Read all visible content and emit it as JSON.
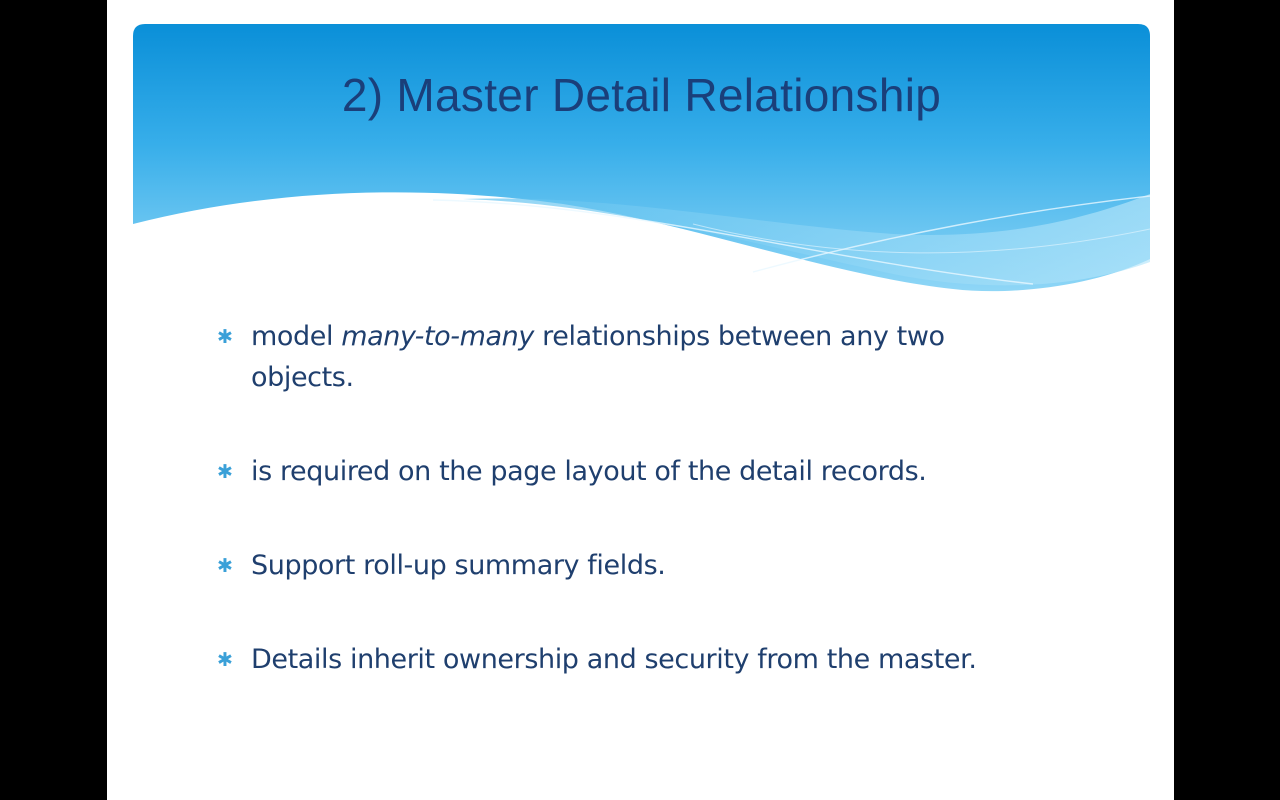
{
  "slide": {
    "title": "2) Master Detail Relationship",
    "bullet_icon": "asterisk-icon",
    "colors": {
      "banner_top": "#0a8fd8",
      "banner_bottom": "#7fd0f5",
      "title": "#1a3f7a",
      "text": "#1f3f6e",
      "bullet": "#3aa0d8"
    },
    "bullets": [
      {
        "pre": "model ",
        "em": "many-to-many",
        "post": " relationships between any two objects."
      },
      {
        "text": "is required on the page layout of the detail records."
      },
      {
        "text": "Support roll-up summary fields."
      },
      {
        "text": "Details inherit ownership and security from the master."
      }
    ]
  }
}
